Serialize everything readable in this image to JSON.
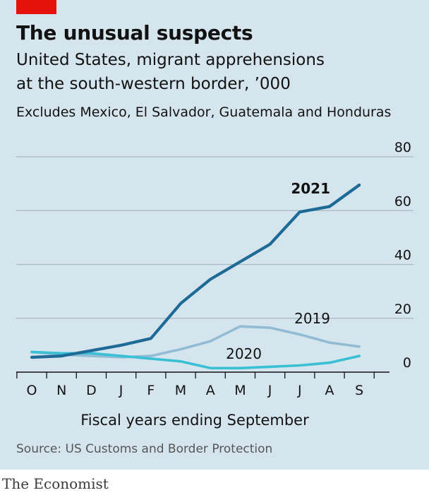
{
  "header": {
    "title": "The unusual suspects",
    "subtitle_line1": "United States, migrant apprehensions",
    "subtitle_line2": "at the south-western border, ’000",
    "note": "Excludes Mexico, El Salvador, Guatemala and Honduras"
  },
  "footer": {
    "source": "Source: US Customs and Border Protection",
    "brand": "The Economist"
  },
  "colors": {
    "accent": "#e3120b",
    "background": "#d5e5ee",
    "series_2021": "#1d6a96",
    "series_2019": "#92bcd3",
    "series_2020": "#3ac0d4"
  },
  "chart_data": {
    "type": "line",
    "title": "The unusual suspects",
    "xlabel": "Fiscal years ending September",
    "ylabel": "",
    "categories": [
      "O",
      "N",
      "D",
      "J",
      "F",
      "M",
      "A",
      "M",
      "J",
      "J",
      "A",
      "S"
    ],
    "ylim": [
      0,
      80
    ],
    "yticks": [
      0,
      20,
      40,
      60,
      80
    ],
    "ytick_labels": [
      "0",
      "20",
      "40",
      "60",
      "80"
    ],
    "grid": true,
    "series": [
      {
        "name": "2021",
        "color": "#1d6a96",
        "bold": true,
        "values": [
          5.5,
          6,
          8,
          10,
          12.5,
          25.5,
          34.5,
          41,
          47.5,
          59.5,
          61.5,
          69.5
        ]
      },
      {
        "name": "2019",
        "color": "#92bcd3",
        "bold": false,
        "values": [
          7.5,
          6.5,
          6,
          5.5,
          6,
          8.5,
          11.5,
          17,
          16.5,
          14,
          11,
          9.5
        ]
      },
      {
        "name": "2020",
        "color": "#3ac0d4",
        "bold": false,
        "values": [
          7.5,
          7,
          7,
          6,
          5,
          4,
          1.5,
          1.5,
          2,
          2.5,
          3.5,
          6
        ]
      }
    ]
  }
}
